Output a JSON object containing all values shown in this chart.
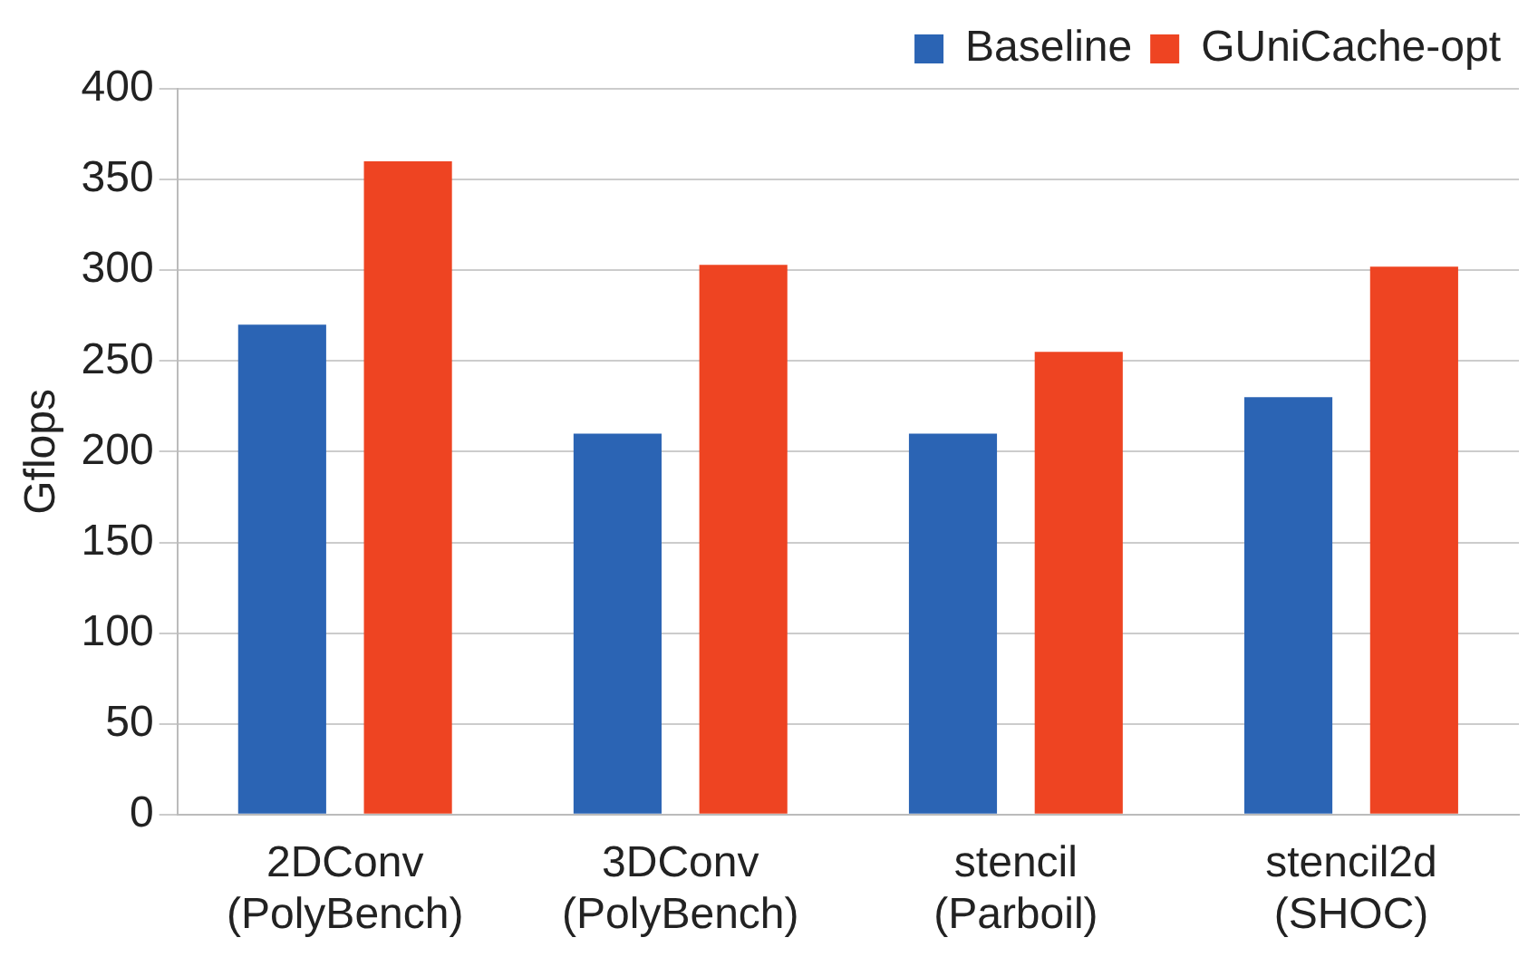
{
  "chart_data": {
    "type": "bar",
    "ylabel": "Gflops",
    "categories": [
      "2DConv\n(PolyBench)",
      "3DConv\n(PolyBench)",
      "stencil\n(Parboil)",
      "stencil2d\n(SHOC)"
    ],
    "series": [
      {
        "name": "Baseline",
        "color": "#2b64b4",
        "values": [
          270,
          210,
          210,
          230
        ]
      },
      {
        "name": "GUniCache-opt",
        "color": "#ee4422",
        "values": [
          360,
          303,
          255,
          302
        ]
      }
    ],
    "ylim": [
      0,
      400
    ],
    "yticks": [
      0,
      50,
      100,
      150,
      200,
      250,
      300,
      350,
      400
    ],
    "grid": "y",
    "legend": "top right"
  }
}
